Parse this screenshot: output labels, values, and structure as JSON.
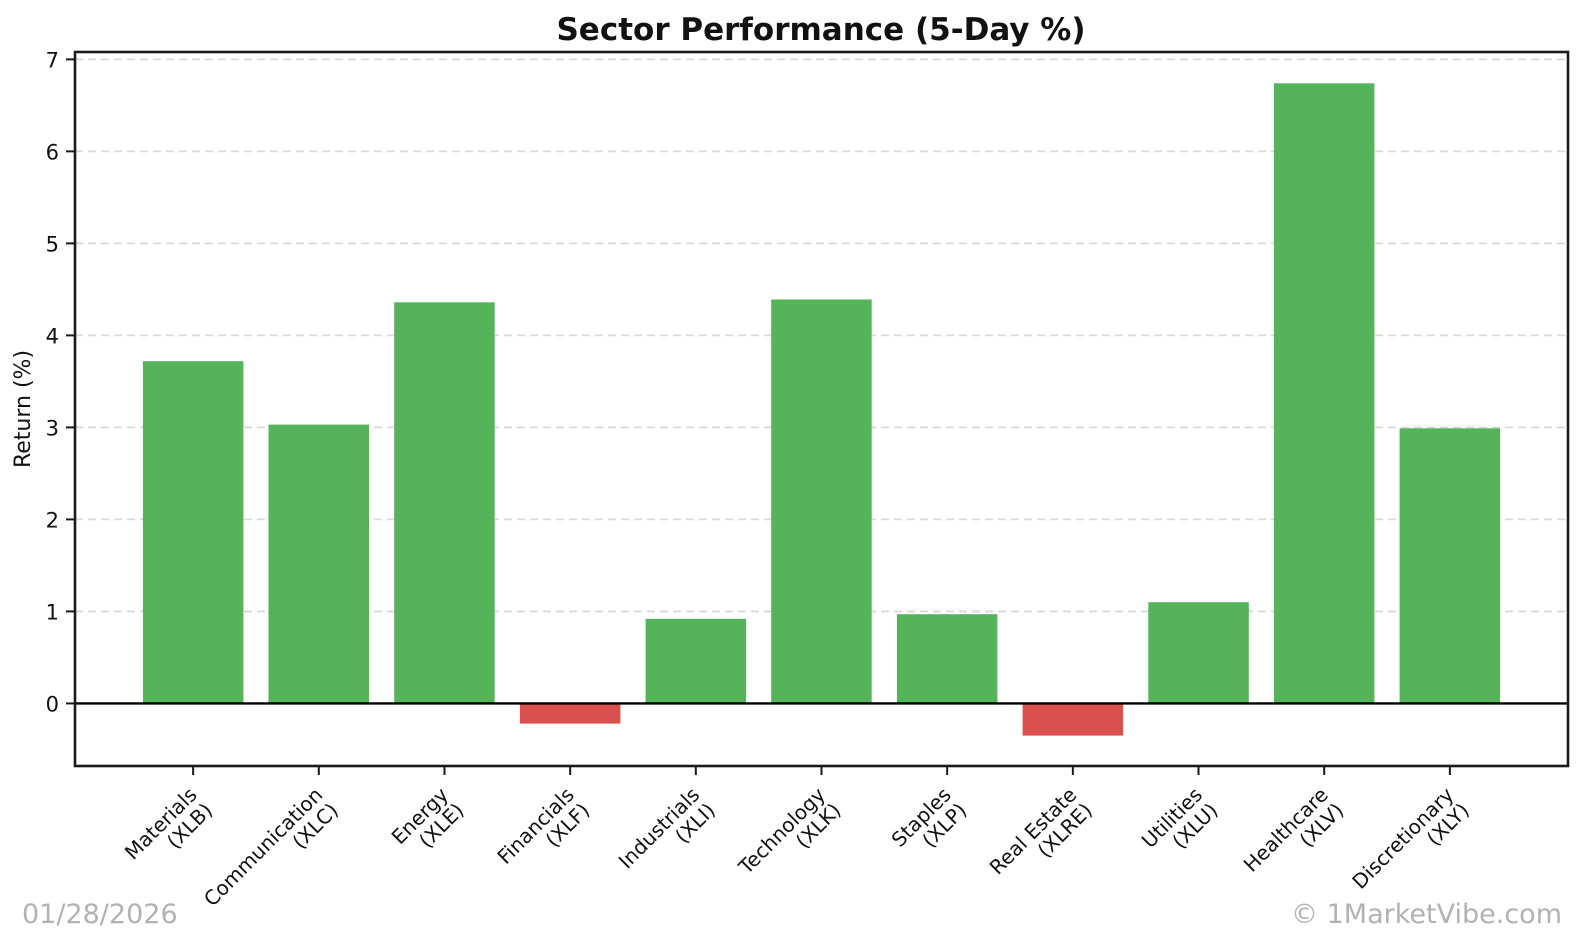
{
  "chart_data": {
    "type": "bar",
    "title": "Sector Performance (5-Day %)",
    "xlabel": "",
    "ylabel": "Return (%)",
    "categories": [
      "Materials\n(XLB)",
      "Communication\n(XLC)",
      "Energy\n(XLE)",
      "Financials\n(XLF)",
      "Industrials\n(XLI)",
      "Technology\n(XLK)",
      "Staples\n(XLP)",
      "Real Estate\n(XLRE)",
      "Utilities\n(XLU)",
      "Healthcare\n(XLV)",
      "Discretionary\n(XLY)"
    ],
    "values": [
      3.72,
      3.03,
      4.36,
      -0.22,
      0.92,
      4.39,
      0.97,
      -0.35,
      1.1,
      6.74,
      2.99
    ],
    "yticks": [
      0,
      1,
      2,
      3,
      4,
      5,
      6,
      7
    ],
    "ylim": [
      -0.68,
      7.08
    ],
    "x_margin": 0.94,
    "bar_width_fraction": 0.8,
    "grid": "horizontal-dashed",
    "legend": "none",
    "positive_color": "#55b45a",
    "negative_color": "#d9504f",
    "zero_baseline": true,
    "xticklabel_rotation_deg": 45
  },
  "footer": {
    "date": "01/28/2026",
    "watermark": "© 1MarketVibe.com"
  }
}
